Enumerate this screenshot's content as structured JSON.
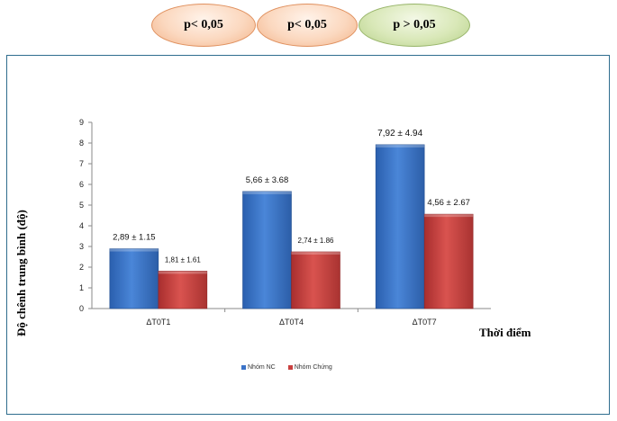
{
  "badges": [
    {
      "label": "p< 0,05",
      "color": "#fbd8bf"
    },
    {
      "label": "p< 0,05",
      "color": "#fbd8bf"
    },
    {
      "label": "p > 0,05",
      "color": "#d9e8b8"
    }
  ],
  "chart_data": {
    "type": "bar",
    "categories": [
      "ΔT0T1",
      "ΔT0T4",
      "ΔT0T7"
    ],
    "series": [
      {
        "name": "Nhóm NC",
        "values": [
          2.89,
          5.66,
          7.92
        ],
        "labels": [
          "2,89 ± 1.15",
          "5,66 ± 3.68",
          "7,92 ± 4.94"
        ],
        "color": "#3b73c8"
      },
      {
        "name": "Nhóm Chứng",
        "values": [
          1.81,
          2.74,
          4.56
        ],
        "labels": [
          "1,81 ± 1.61",
          "2,74 ± 1.86",
          "4,56 ± 2.67"
        ],
        "color": "#c9403f"
      }
    ],
    "ylim": [
      0,
      9
    ],
    "yticks": [
      "0",
      "1",
      "2",
      "3",
      "4",
      "5",
      "6",
      "7",
      "8",
      "9"
    ],
    "xlabel": "Thời điểm",
    "ylabel": "Độ chênh trung bình  (độ)",
    "legend_position": "bottom"
  }
}
